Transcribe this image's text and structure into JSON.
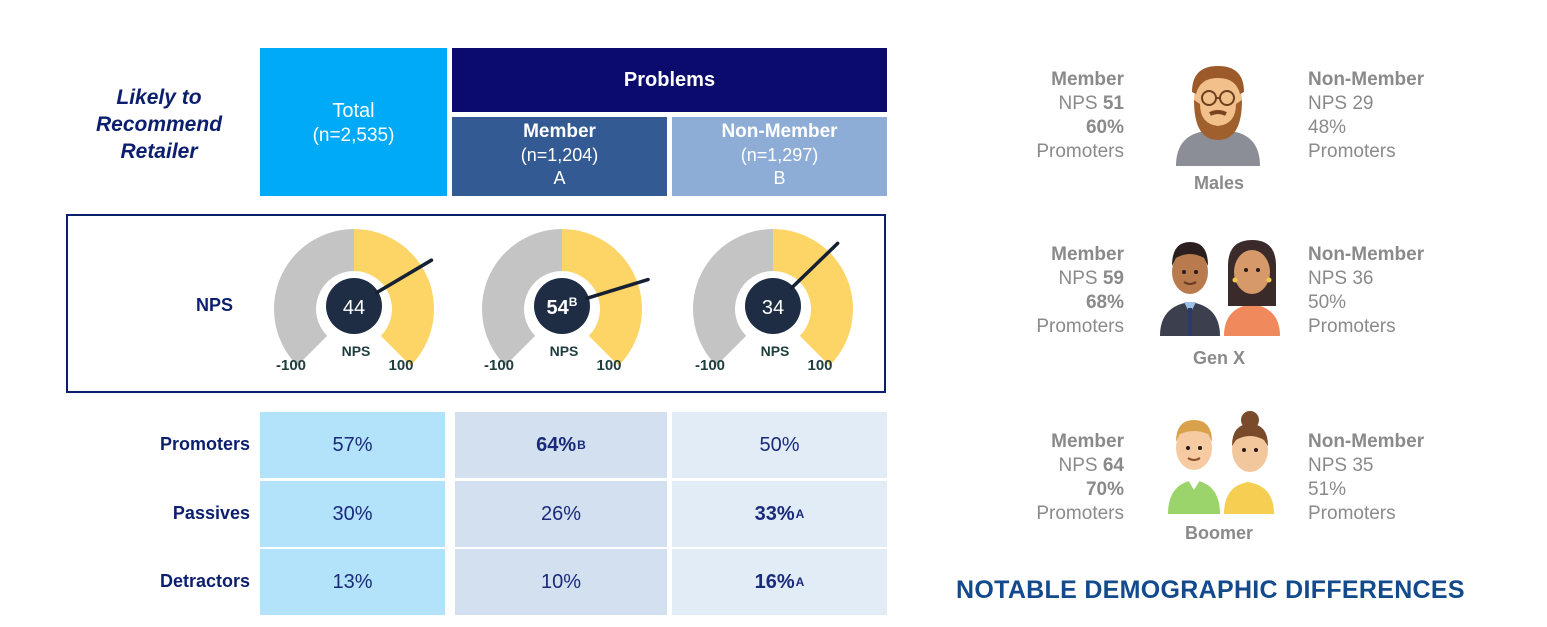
{
  "header": {
    "row_label_lines": [
      "Likely to",
      "Recommend",
      "Retailer"
    ],
    "total": {
      "label": "Total",
      "n": "(n=2,535)"
    },
    "problems": "Problems",
    "member": {
      "label": "Member",
      "n": "(n=1,204)",
      "letter": "A"
    },
    "nonmember": {
      "label": "Non-Member",
      "n": "(n=1,297)",
      "letter": "B"
    }
  },
  "nps_row_label": "NPS",
  "chart_data": {
    "type": "gauge",
    "range": [
      -100,
      100
    ],
    "min_label": "-100",
    "max_label": "100",
    "center_caption": "NPS",
    "colors": {
      "negative": "#c4c4c4",
      "positive": "#fdd466",
      "hub": "#1f2d44",
      "needle": "#162033"
    },
    "gauges": [
      {
        "value": 44,
        "display": "44",
        "sig": ""
      },
      {
        "value": 54,
        "display": "54",
        "sig": "B"
      },
      {
        "value": 34,
        "display": "34",
        "sig": ""
      }
    ]
  },
  "table": {
    "rows": [
      {
        "label": "Promoters",
        "cells": [
          {
            "text": "57%",
            "sig": "",
            "bold": false
          },
          {
            "text": "64%",
            "sig": "B",
            "bold": true
          },
          {
            "text": "50%",
            "sig": "",
            "bold": false
          }
        ]
      },
      {
        "label": "Passives",
        "cells": [
          {
            "text": "30%",
            "sig": "",
            "bold": false
          },
          {
            "text": "26%",
            "sig": "",
            "bold": false
          },
          {
            "text": "33%",
            "sig": "A",
            "bold": true
          }
        ]
      },
      {
        "label": "Detractors",
        "cells": [
          {
            "text": "13%",
            "sig": "",
            "bold": false
          },
          {
            "text": "10%",
            "sig": "",
            "bold": false
          },
          {
            "text": "16%",
            "sig": "A",
            "bold": true
          }
        ]
      }
    ]
  },
  "demographics": [
    {
      "name": "Males",
      "icon": "male-bearded-icon",
      "member": {
        "seg": "Member",
        "nps_label": "NPS",
        "nps": "51",
        "pct": "60%",
        "promoters": "Promoters"
      },
      "nonmember": {
        "seg": "Non-Member",
        "nps_label": "NPS",
        "nps": "29",
        "pct": "48%",
        "promoters": "Promoters"
      }
    },
    {
      "name": "Gen X",
      "icon": "gen-x-couple-icon",
      "member": {
        "seg": "Member",
        "nps_label": "NPS",
        "nps": "59",
        "pct": "68%",
        "promoters": "Promoters"
      },
      "nonmember": {
        "seg": "Non-Member",
        "nps_label": "NPS",
        "nps": "36",
        "pct": "50%",
        "promoters": "Promoters"
      }
    },
    {
      "name": "Boomer",
      "icon": "boomer-couple-icon",
      "member": {
        "seg": "Member",
        "nps_label": "NPS",
        "nps": "64",
        "pct": "70%",
        "promoters": "Promoters"
      },
      "nonmember": {
        "seg": "Non-Member",
        "nps_label": "NPS",
        "nps": "35",
        "pct": "51%",
        "promoters": "Promoters"
      }
    }
  ],
  "footer_title": "NOTABLE DEMOGRAPHIC DIFFERENCES"
}
